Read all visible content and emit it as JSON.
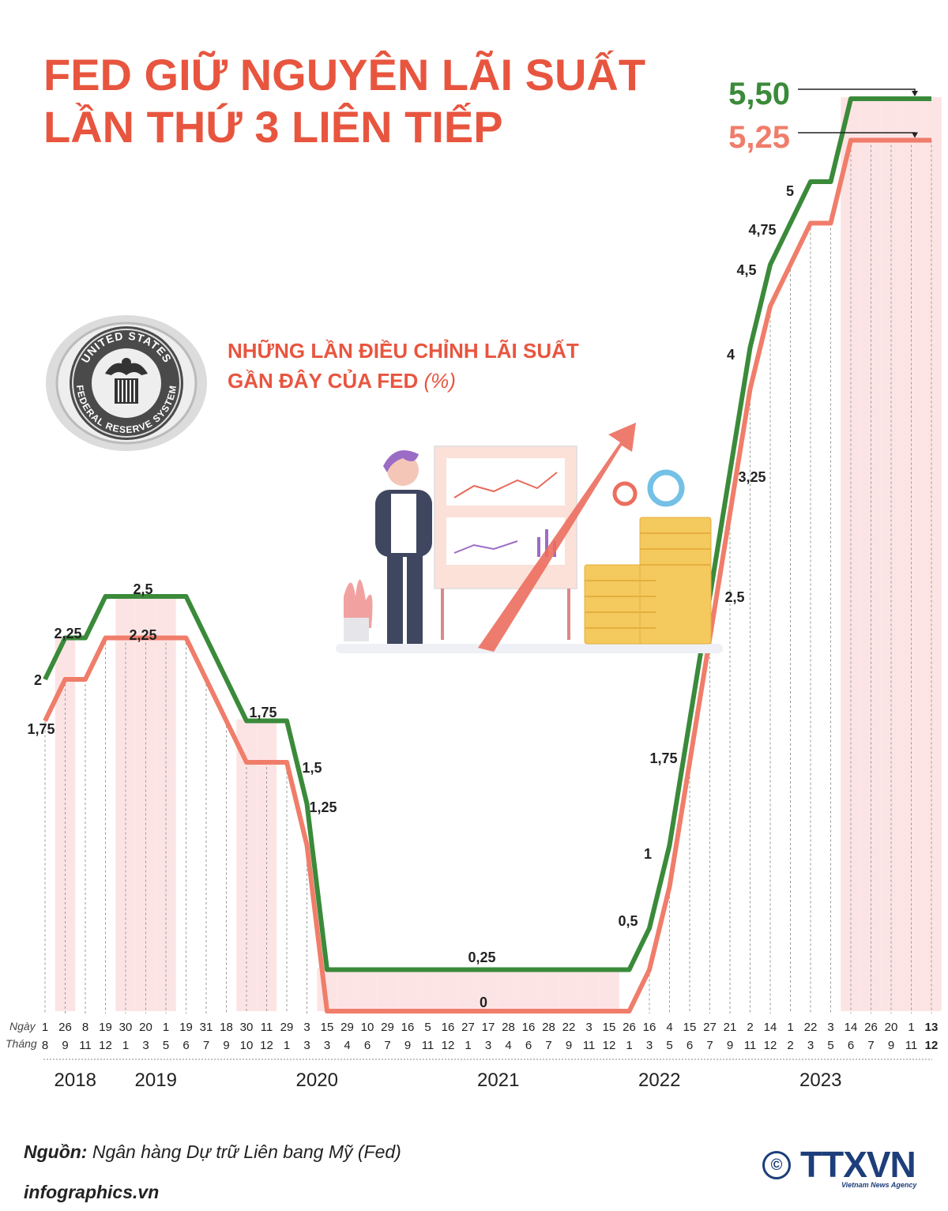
{
  "title_lines": [
    "FED GIỮ NGUYÊN LÃI SUẤT",
    "LẦN THỨ 3 LIÊN TIẾP"
  ],
  "subtitle_line1": "NHỮNG LẦN ĐIỀU CHỈNH LÃI SUẤT",
  "subtitle_line2": "GẦN ĐÂY CỦA FED",
  "subtitle_unit": "(%)",
  "seal": {
    "text_top": "UNITED STATES",
    "text_bottom": "FEDERAL RESERVE SYSTEM"
  },
  "axis_labels": {
    "day": "Ngày",
    "month": "Tháng"
  },
  "source_label": "Nguồn:",
  "source_text": "Ngân hàng Dự trữ Liên bang Mỹ (Fed)",
  "website": "infographics.vn",
  "logo": {
    "symbol": "©",
    "brand": "TTXVN",
    "tagline": "Vietnam News Agency"
  },
  "colors": {
    "upper": "#3a8a3a",
    "lower": "#f07d6a",
    "title": "#e8553f",
    "band": "#fde4e4"
  },
  "chart_data": {
    "type": "line",
    "dates": [
      {
        "day": "1",
        "month": "8"
      },
      {
        "day": "26",
        "month": "9"
      },
      {
        "day": "8",
        "month": "11"
      },
      {
        "day": "19",
        "month": "12"
      },
      {
        "day": "30",
        "month": "1"
      },
      {
        "day": "20",
        "month": "3"
      },
      {
        "day": "1",
        "month": "5"
      },
      {
        "day": "19",
        "month": "6"
      },
      {
        "day": "31",
        "month": "7"
      },
      {
        "day": "18",
        "month": "9"
      },
      {
        "day": "30",
        "month": "10"
      },
      {
        "day": "11",
        "month": "12"
      },
      {
        "day": "29",
        "month": "1"
      },
      {
        "day": "3",
        "month": "3"
      },
      {
        "day": "15",
        "month": "3"
      },
      {
        "day": "29",
        "month": "4"
      },
      {
        "day": "10",
        "month": "6"
      },
      {
        "day": "29",
        "month": "7"
      },
      {
        "day": "16",
        "month": "9"
      },
      {
        "day": "5",
        "month": "11"
      },
      {
        "day": "16",
        "month": "12"
      },
      {
        "day": "27",
        "month": "1"
      },
      {
        "day": "17",
        "month": "3"
      },
      {
        "day": "28",
        "month": "4"
      },
      {
        "day": "16",
        "month": "6"
      },
      {
        "day": "28",
        "month": "7"
      },
      {
        "day": "22",
        "month": "9"
      },
      {
        "day": "3",
        "month": "11"
      },
      {
        "day": "15",
        "month": "12"
      },
      {
        "day": "26",
        "month": "1"
      },
      {
        "day": "16",
        "month": "3"
      },
      {
        "day": "4",
        "month": "5"
      },
      {
        "day": "15",
        "month": "6"
      },
      {
        "day": "27",
        "month": "7"
      },
      {
        "day": "21",
        "month": "9"
      },
      {
        "day": "2",
        "month": "11"
      },
      {
        "day": "14",
        "month": "12"
      },
      {
        "day": "1",
        "month": "2"
      },
      {
        "day": "22",
        "month": "3"
      },
      {
        "day": "3",
        "month": "5"
      },
      {
        "day": "14",
        "month": "6"
      },
      {
        "day": "26",
        "month": "7"
      },
      {
        "day": "20",
        "month": "9"
      },
      {
        "day": "1",
        "month": "11"
      },
      {
        "day": "13",
        "month": "12"
      }
    ],
    "years": [
      {
        "label": "2018",
        "index": 1.5
      },
      {
        "label": "2019",
        "index": 5.5
      },
      {
        "label": "2020",
        "index": 13.5
      },
      {
        "label": "2021",
        "index": 22.5
      },
      {
        "label": "2022",
        "index": 30.5
      },
      {
        "label": "2023",
        "index": 38.5
      }
    ],
    "series": [
      {
        "values": [
          2,
          2.25,
          2.25,
          2.5,
          2.5,
          2.5,
          2.5,
          2.5,
          2.25,
          2,
          1.75,
          1.75,
          1.75,
          1.25,
          0.25,
          0.25,
          0.25,
          0.25,
          0.25,
          0.25,
          0.25,
          0.25,
          0.25,
          0.25,
          0.25,
          0.25,
          0.25,
          0.25,
          0.25,
          0.25,
          0.5,
          1,
          1.75,
          2.5,
          3.25,
          4,
          4.5,
          4.75,
          5,
          5,
          5.5,
          5.5,
          5.5,
          5.5,
          5.5
        ]
      },
      {
        "values": [
          1.75,
          2,
          2,
          2.25,
          2.25,
          2.25,
          2.25,
          2.25,
          2,
          1.75,
          1.5,
          1.5,
          1.5,
          1,
          0,
          0,
          0,
          0,
          0,
          0,
          0,
          0,
          0,
          0,
          0,
          0,
          0,
          0,
          0,
          0,
          0.25,
          0.75,
          1.5,
          2.25,
          3,
          3.75,
          4.25,
          4.5,
          4.75,
          4.75,
          5.25,
          5.25,
          5.25,
          5.25,
          5.25
        ]
      }
    ],
    "highlight_indices": [
      1,
      4,
      5,
      6,
      10,
      11,
      14,
      15,
      16,
      17,
      18,
      19,
      20,
      21,
      22,
      23,
      24,
      25,
      26,
      27,
      28,
      40,
      41,
      42,
      43,
      44
    ],
    "value_labels": [
      {
        "text": "2",
        "index": 0
      },
      {
        "text": "1,75",
        "index": 0
      },
      {
        "text": "2,25",
        "index": 1
      },
      {
        "text": "2,5",
        "index": 5
      },
      {
        "text": "2,25",
        "index": 5
      },
      {
        "text": "1,75",
        "index": 11
      },
      {
        "text": "1,5",
        "index": 13
      },
      {
        "text": "1,25",
        "index": 13
      },
      {
        "text": "0,25",
        "index": 22
      },
      {
        "text": "0",
        "index": 22
      },
      {
        "text": "0,5",
        "index": 30
      },
      {
        "text": "1",
        "index": 31
      },
      {
        "text": "1,75",
        "index": 32
      },
      {
        "text": "2,5",
        "index": 34
      },
      {
        "text": "3,25",
        "index": 35
      },
      {
        "text": "4",
        "index": 35
      },
      {
        "text": "4,5",
        "index": 36
      },
      {
        "text": "4,75",
        "index": 37
      },
      {
        "text": "5",
        "index": 38
      }
    ],
    "end_labels": [
      "5,50",
      "5,25"
    ]
  }
}
